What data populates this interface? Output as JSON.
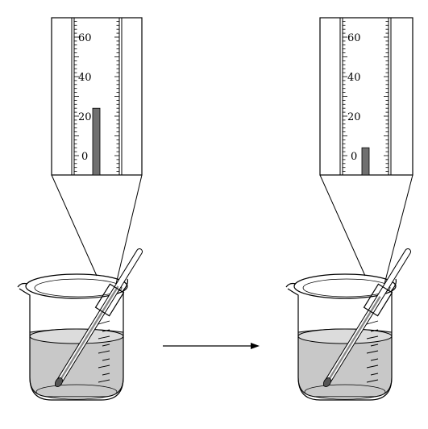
{
  "scale_labels": [
    "60",
    "40",
    "20",
    "0"
  ],
  "thermometers": [
    {
      "id": "left",
      "reading": 24
    },
    {
      "id": "right",
      "reading": 4
    }
  ],
  "colors": {
    "liquid": "#c8c8c8",
    "mercury": "#707070",
    "stroke": "#000000"
  }
}
